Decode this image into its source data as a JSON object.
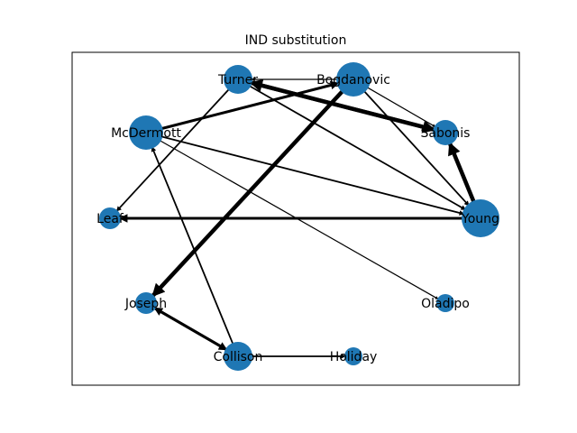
{
  "title": "IND substitution",
  "colors": {
    "node": "#1f77b4",
    "edge": "#000000",
    "frame": "#000000",
    "background": "#ffffff"
  },
  "nodes": [
    {
      "id": "Turner",
      "label": "Turner",
      "size": "medium"
    },
    {
      "id": "Bogdanovic",
      "label": "Bogdanovic",
      "size": "large"
    },
    {
      "id": "McDermott",
      "label": "McDermott",
      "size": "large"
    },
    {
      "id": "Sabonis",
      "label": "Sabonis",
      "size": "small-medium"
    },
    {
      "id": "Leaf",
      "label": "Leaf",
      "size": "small"
    },
    {
      "id": "Young",
      "label": "Young",
      "size": "xlarge"
    },
    {
      "id": "Joseph",
      "label": "Joseph",
      "size": "small"
    },
    {
      "id": "Oladipo",
      "label": "Oladipo",
      "size": "xsmall"
    },
    {
      "id": "Collison",
      "label": "Collison",
      "size": "medium"
    },
    {
      "id": "Holiday",
      "label": "Holiday",
      "size": "xsmall"
    }
  ],
  "edges": [
    {
      "source": "Bogdanovic",
      "target": "Joseph",
      "weight": "heavy"
    },
    {
      "source": "Young",
      "target": "Sabonis",
      "weight": "heavy"
    },
    {
      "source": "Sabonis",
      "target": "Turner",
      "weight": "heavy"
    },
    {
      "source": "Turner",
      "target": "Sabonis",
      "weight": "heavy"
    },
    {
      "source": "Joseph",
      "target": "Collison",
      "weight": "medium"
    },
    {
      "source": "Collison",
      "target": "Joseph",
      "weight": "medium"
    },
    {
      "source": "McDermott",
      "target": "Bogdanovic",
      "weight": "medium"
    },
    {
      "source": "Young",
      "target": "Leaf",
      "weight": "medium"
    },
    {
      "source": "Collison",
      "target": "McDermott",
      "weight": "light"
    },
    {
      "source": "Turner",
      "target": "Leaf",
      "weight": "light"
    },
    {
      "source": "Bogdanovic",
      "target": "Young",
      "weight": "light"
    },
    {
      "source": "McDermott",
      "target": "Young",
      "weight": "light"
    },
    {
      "source": "Turner",
      "target": "Young",
      "weight": "light"
    },
    {
      "source": "McDermott",
      "target": "Oladipo",
      "weight": "thin"
    },
    {
      "source": "Bogdanovic",
      "target": "Sabonis",
      "weight": "thin"
    },
    {
      "source": "Bogdanovic",
      "target": "Turner",
      "weight": "thin"
    },
    {
      "source": "Collison",
      "target": "Holiday",
      "weight": "light"
    }
  ]
}
